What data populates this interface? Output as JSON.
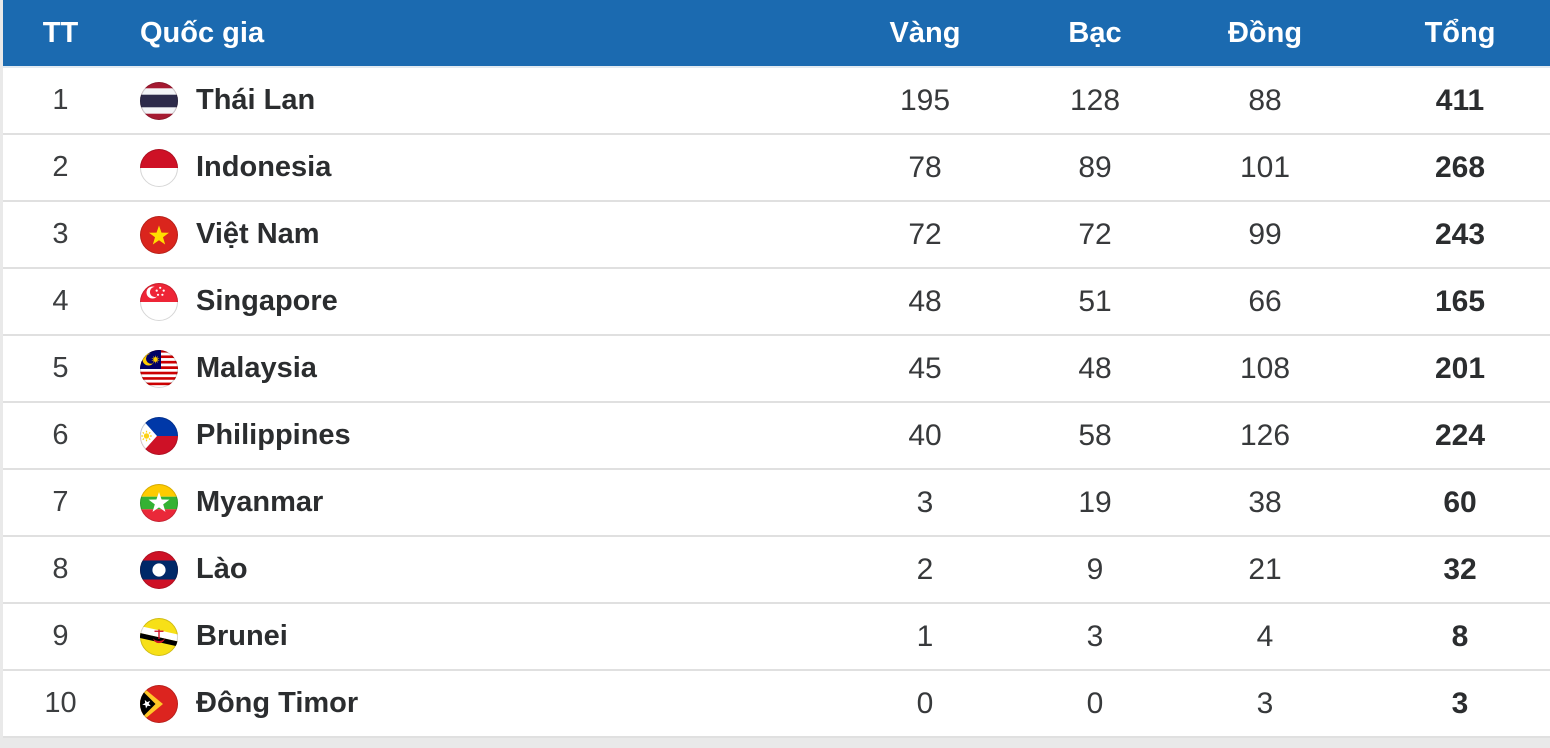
{
  "theme": {
    "header_bg": "#1b6ab0",
    "header_text": "#ffffff",
    "row_bg": "#ffffff",
    "row_border": "#e0e0e0",
    "page_bg": "#e9e9e9",
    "number_text": "#37393b",
    "bold_text": "#2b2d2f"
  },
  "table": {
    "columns": {
      "rank": "TT",
      "country": "Quốc gia",
      "gold": "Vàng",
      "silver": "Bạc",
      "bronze": "Đồng",
      "total": "Tổng"
    },
    "rows": [
      {
        "rank": "1",
        "country": "Thái Lan",
        "flag": "thailand",
        "gold": "195",
        "silver": "128",
        "bronze": "88",
        "total": "411"
      },
      {
        "rank": "2",
        "country": "Indonesia",
        "flag": "indonesia",
        "gold": "78",
        "silver": "89",
        "bronze": "101",
        "total": "268"
      },
      {
        "rank": "3",
        "country": "Việt Nam",
        "flag": "vietnam",
        "gold": "72",
        "silver": "72",
        "bronze": "99",
        "total": "243"
      },
      {
        "rank": "4",
        "country": "Singapore",
        "flag": "singapore",
        "gold": "48",
        "silver": "51",
        "bronze": "66",
        "total": "165"
      },
      {
        "rank": "5",
        "country": "Malaysia",
        "flag": "malaysia",
        "gold": "45",
        "silver": "48",
        "bronze": "108",
        "total": "201"
      },
      {
        "rank": "6",
        "country": "Philippines",
        "flag": "philippines",
        "gold": "40",
        "silver": "58",
        "bronze": "126",
        "total": "224"
      },
      {
        "rank": "7",
        "country": "Myanmar",
        "flag": "myanmar",
        "gold": "3",
        "silver": "19",
        "bronze": "38",
        "total": "60"
      },
      {
        "rank": "8",
        "country": "Lào",
        "flag": "laos",
        "gold": "2",
        "silver": "9",
        "bronze": "21",
        "total": "32"
      },
      {
        "rank": "9",
        "country": "Brunei",
        "flag": "brunei",
        "gold": "1",
        "silver": "3",
        "bronze": "4",
        "total": "8"
      },
      {
        "rank": "10",
        "country": "Đông Timor",
        "flag": "east-timor",
        "gold": "0",
        "silver": "0",
        "bronze": "3",
        "total": "3"
      }
    ]
  }
}
